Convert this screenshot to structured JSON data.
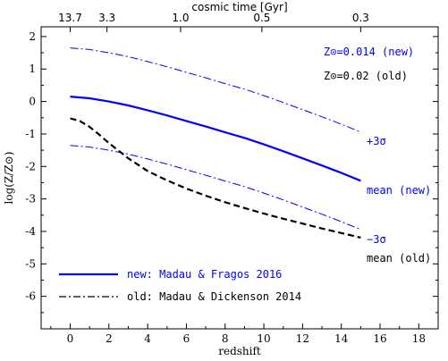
{
  "chart_data": {
    "type": "line",
    "title": "",
    "xlabel": "redshift",
    "ylabel": "log(Z/Z⊙)",
    "top_xlabel": "cosmic time [Gyr]",
    "xlim": [
      -1.5,
      19.0
    ],
    "ylim": [
      -7.0,
      2.3
    ],
    "x_ticks": [
      "0",
      "2",
      "4",
      "6",
      "8",
      "10",
      "12",
      "14",
      "16",
      "18"
    ],
    "x_tick_values": [
      0,
      2,
      4,
      6,
      8,
      10,
      12,
      14,
      16,
      18
    ],
    "y_ticks": [
      "2",
      "1",
      "0",
      "-1",
      "-2",
      "-3",
      "-4",
      "-5",
      "-6"
    ],
    "y_tick_values": [
      2,
      1,
      0,
      -1,
      -2,
      -3,
      -4,
      -5,
      -6
    ],
    "top_ticks": [
      {
        "label": "13.7",
        "z": 0
      },
      {
        "label": "3.3",
        "z": 1.9
      },
      {
        "label": "1.0",
        "z": 5.7
      },
      {
        "label": "0.5",
        "z": 9.9
      },
      {
        "label": "0.3",
        "z": 15.0
      }
    ],
    "grid": false,
    "series": [
      {
        "key": "new-mean",
        "color": "#0000ff",
        "style": "solid",
        "x": [
          0,
          1,
          2,
          3,
          4,
          5,
          6,
          7,
          8,
          9,
          10,
          11,
          12,
          13,
          14,
          15
        ],
        "y": [
          0.15,
          0.1,
          0.0,
          -0.12,
          -0.27,
          -0.43,
          -0.6,
          -0.77,
          -0.95,
          -1.12,
          -1.32,
          -1.53,
          -1.75,
          -1.97,
          -2.2,
          -2.44
        ]
      },
      {
        "key": "new-plus3sigma",
        "color": "#0000ff",
        "style": "dashdot-thin",
        "x": [
          0,
          1,
          2,
          3,
          4,
          5,
          6,
          7,
          8,
          9,
          10,
          11,
          12,
          13,
          14,
          15
        ],
        "y": [
          1.65,
          1.6,
          1.5,
          1.38,
          1.23,
          1.07,
          0.9,
          0.73,
          0.55,
          0.38,
          0.18,
          -0.03,
          -0.25,
          -0.47,
          -0.7,
          -0.94
        ]
      },
      {
        "key": "new-minus3sigma",
        "color": "#0000ff",
        "style": "dashdot-thin",
        "x": [
          0,
          1,
          2,
          3,
          4,
          5,
          6,
          7,
          8,
          9,
          10,
          11,
          12,
          13,
          14,
          15
        ],
        "y": [
          -1.35,
          -1.4,
          -1.5,
          -1.62,
          -1.77,
          -1.93,
          -2.1,
          -2.27,
          -2.45,
          -2.62,
          -2.82,
          -3.03,
          -3.25,
          -3.47,
          -3.7,
          -3.94
        ]
      },
      {
        "key": "old-mean",
        "color": "#000000",
        "style": "dashed",
        "x": [
          0,
          0.5,
          1,
          1.5,
          2,
          3,
          4,
          5,
          6,
          7,
          8,
          9,
          10,
          11,
          12,
          13,
          14,
          15
        ],
        "y": [
          -0.52,
          -0.6,
          -0.78,
          -1.02,
          -1.28,
          -1.75,
          -2.14,
          -2.43,
          -2.68,
          -2.9,
          -3.1,
          -3.28,
          -3.45,
          -3.61,
          -3.76,
          -3.91,
          -4.05,
          -4.19
        ]
      }
    ],
    "annotations": {
      "plus3sigma": "+3σ",
      "mean_new": "mean (new)",
      "minus3sigma": "−3σ",
      "mean_old": "mean (old)",
      "zsun_new": "Z⊙=0.014 (new)",
      "zsun_old": "Z⊙=0.02 (old)"
    },
    "legend": {
      "placement": "bottom-left",
      "items": [
        {
          "label": "new: Madau & Fragos 2016",
          "color": "#0000ff",
          "style": "solid"
        },
        {
          "label": "old: Madau & Dickenson 2014",
          "color": "#000000",
          "style": "dashdot"
        }
      ]
    }
  }
}
